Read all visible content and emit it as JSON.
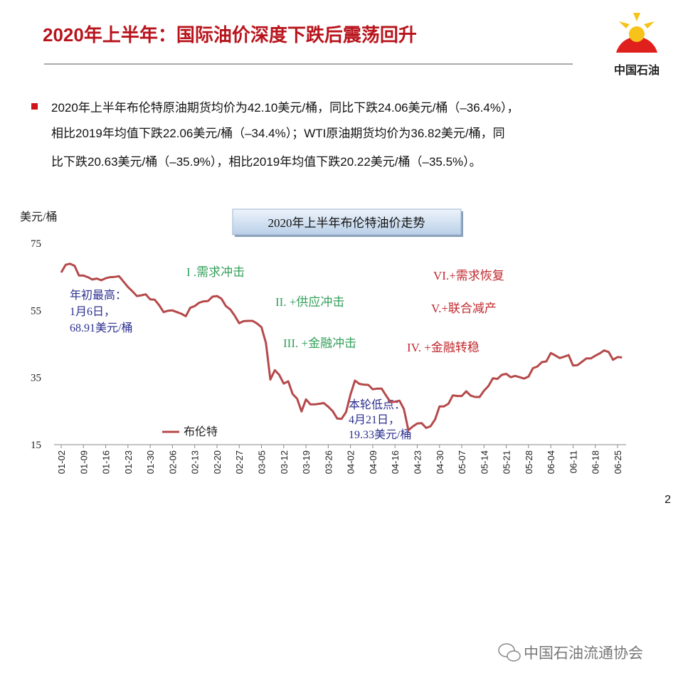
{
  "header": {
    "title": "2020年上半年：国际油价深度下跌后震荡回升",
    "logo_text": "中国石油"
  },
  "bullet": {
    "lines": [
      "2020年上半年布伦特原油期货均价为42.10美元/桶，同比下跌24.06美元/桶（–36.4%），",
      "相比2019年均值下跌22.06美元/桶（–34.4%）；WTI原油期货均价为36.82美元/桶，同",
      "比下跌20.63美元/桶（–35.9%），相比2019年均值下跌20.22美元/桶（–35.5%）。"
    ]
  },
  "chart_data": {
    "type": "line",
    "title": "2020年上半年布伦特油价走势",
    "y_label": "美元/桶",
    "ylim": [
      15,
      75
    ],
    "yticks": [
      15,
      35,
      55,
      75
    ],
    "grid": false,
    "categories": [
      "01-02",
      null,
      null,
      null,
      null,
      "01-09",
      null,
      null,
      null,
      null,
      "01-16",
      null,
      null,
      null,
      null,
      "01-23",
      null,
      null,
      null,
      null,
      "01-30",
      null,
      null,
      null,
      null,
      "02-06",
      null,
      null,
      null,
      null,
      "02-13",
      null,
      null,
      null,
      null,
      "02-20",
      null,
      null,
      null,
      null,
      "02-27",
      null,
      null,
      null,
      null,
      "03-05",
      null,
      null,
      null,
      null,
      "03-12",
      null,
      null,
      null,
      null,
      "03-19",
      null,
      null,
      null,
      null,
      "03-26",
      null,
      null,
      null,
      null,
      "04-02",
      null,
      null,
      null,
      null,
      "04-09",
      null,
      null,
      null,
      null,
      "04-16",
      null,
      null,
      null,
      null,
      "04-23",
      null,
      null,
      null,
      null,
      "04-30",
      null,
      null,
      null,
      null,
      "05-07",
      null,
      null,
      null,
      null,
      "05-14",
      null,
      null,
      null,
      null,
      "05-21",
      null,
      null,
      null,
      null,
      "05-28",
      null,
      null,
      null,
      null,
      "06-04",
      null,
      null,
      null,
      null,
      "06-11",
      null,
      null,
      null,
      null,
      "06-18",
      null,
      null,
      null,
      null,
      "06-25",
      null
    ],
    "series": [
      {
        "name": "布伦特",
        "color": "#b5494a",
        "values": [
          66.3,
          68.6,
          68.91,
          68.3,
          65.4,
          65.4,
          64.9,
          64.2,
          64.5,
          64.0,
          64.6,
          64.9,
          65.0,
          65.2,
          63.6,
          62.0,
          60.7,
          59.3,
          59.5,
          59.8,
          58.3,
          58.2,
          56.6,
          54.5,
          54.9,
          55.0,
          54.5,
          54.0,
          53.3,
          55.8,
          56.3,
          57.3,
          57.7,
          57.8,
          59.1,
          59.3,
          58.5,
          56.3,
          55.3,
          53.4,
          51.2,
          51.8,
          51.9,
          51.9,
          51.1,
          50.0,
          45.3,
          34.4,
          37.2,
          35.8,
          33.2,
          33.9,
          30.1,
          28.7,
          24.9,
          28.5,
          27.0,
          27.0,
          27.2,
          27.4,
          26.3,
          25.0,
          22.8,
          22.7,
          24.7,
          29.9,
          34.1,
          33.1,
          32.9,
          32.8,
          31.5,
          31.7,
          31.7,
          29.6,
          27.7,
          27.8,
          28.1,
          25.6,
          19.33,
          20.4,
          21.3,
          21.4,
          19.99,
          20.5,
          22.5,
          26.4,
          26.4,
          27.2,
          29.7,
          29.5,
          29.5,
          30.9,
          29.6,
          29.2,
          29.2,
          31.1,
          32.5,
          34.8,
          34.6,
          35.8,
          36.1,
          35.1,
          35.5,
          35.1,
          34.7,
          35.3,
          37.8,
          38.3,
          39.6,
          39.8,
          42.3,
          41.6,
          40.8,
          41.2,
          41.7,
          38.6,
          38.7,
          39.7,
          40.7,
          40.7,
          41.5,
          42.2,
          43.1,
          42.6,
          40.3,
          41.1,
          41.0
        ]
      }
    ],
    "annotations": {
      "high": [
        "年初最高：",
        "1月6日，",
        "68.91美元/桶"
      ],
      "low": [
        "本轮低点：",
        "4月21日，",
        "19.33美元/桶"
      ],
      "phases": [
        "I .需求冲击",
        "II. +供应冲击",
        "III. +金融冲击",
        "IV. +金融转稳",
        "V.+联合减产",
        "VI.+需求恢复"
      ]
    }
  },
  "page_number": "2",
  "watermark": "中国石油流通协会"
}
